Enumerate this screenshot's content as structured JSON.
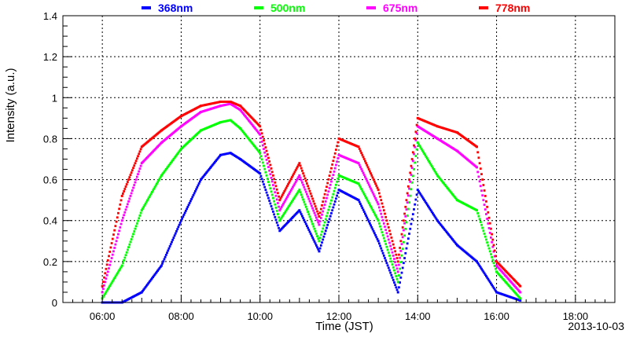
{
  "chart_data": {
    "type": "scatter",
    "xlabel": "Time (JST)",
    "ylabel": "Intensity (a.u.)",
    "date": "2013-10-03",
    "xlim": [
      5.0,
      19.0
    ],
    "ylim": [
      0,
      1.4
    ],
    "grid": true,
    "legend_position": "top",
    "x_tick_labels": [
      "06:00",
      "08:00",
      "10:00",
      "12:00",
      "14:00",
      "16:00",
      "18:00"
    ],
    "x_tick_values": [
      6,
      8,
      10,
      12,
      14,
      16,
      18
    ],
    "y_tick_labels": [
      "0",
      "0.2",
      "0.4",
      "0.6",
      "0.8",
      "1",
      "1.2",
      "1.4"
    ],
    "y_tick_values": [
      0,
      0.2,
      0.4,
      0.6,
      0.8,
      1.0,
      1.2,
      1.4
    ],
    "series": [
      {
        "name": "368nm",
        "color": "#0000ff",
        "x": [
          6.0,
          6.5,
          7.0,
          7.5,
          8.0,
          8.5,
          9.0,
          9.25,
          9.5,
          10.0,
          10.5,
          11.0,
          11.5,
          12.0,
          12.5,
          13.0,
          13.5,
          14.0,
          14.5,
          15.0,
          15.5,
          16.0,
          16.6
        ],
        "y": [
          0.0,
          0.0,
          0.05,
          0.18,
          0.4,
          0.6,
          0.72,
          0.73,
          0.7,
          0.63,
          0.35,
          0.45,
          0.25,
          0.55,
          0.5,
          0.3,
          0.05,
          0.55,
          0.4,
          0.28,
          0.2,
          0.05,
          0.01
        ]
      },
      {
        "name": "500nm",
        "color": "#00ff00",
        "x": [
          6.0,
          6.5,
          7.0,
          7.5,
          8.0,
          8.5,
          9.0,
          9.25,
          9.5,
          10.0,
          10.5,
          11.0,
          11.5,
          12.0,
          12.5,
          13.0,
          13.5,
          14.0,
          14.5,
          15.0,
          15.5,
          16.0,
          16.6
        ],
        "y": [
          0.02,
          0.18,
          0.45,
          0.62,
          0.75,
          0.84,
          0.88,
          0.89,
          0.85,
          0.73,
          0.4,
          0.55,
          0.3,
          0.62,
          0.58,
          0.4,
          0.1,
          0.78,
          0.62,
          0.5,
          0.45,
          0.15,
          0.02
        ]
      },
      {
        "name": "675nm",
        "color": "#ff00ff",
        "x": [
          6.0,
          6.5,
          7.0,
          7.5,
          8.0,
          8.5,
          9.0,
          9.25,
          9.5,
          10.0,
          10.5,
          11.0,
          11.5,
          12.0,
          12.5,
          13.0,
          13.5,
          14.0,
          14.5,
          15.0,
          15.5,
          16.0,
          16.6
        ],
        "y": [
          0.05,
          0.4,
          0.68,
          0.78,
          0.86,
          0.93,
          0.96,
          0.97,
          0.94,
          0.82,
          0.45,
          0.62,
          0.38,
          0.72,
          0.68,
          0.48,
          0.15,
          0.86,
          0.8,
          0.74,
          0.66,
          0.18,
          0.05
        ]
      },
      {
        "name": "778nm",
        "color": "#ff0000",
        "x": [
          6.0,
          6.5,
          7.0,
          7.5,
          8.0,
          8.5,
          9.0,
          9.25,
          9.5,
          10.0,
          10.5,
          11.0,
          11.5,
          12.0,
          12.5,
          13.0,
          13.5,
          14.0,
          14.5,
          15.0,
          15.5,
          16.0,
          16.6
        ],
        "y": [
          0.08,
          0.52,
          0.76,
          0.84,
          0.91,
          0.96,
          0.98,
          0.98,
          0.96,
          0.86,
          0.5,
          0.68,
          0.42,
          0.8,
          0.76,
          0.55,
          0.2,
          0.9,
          0.86,
          0.83,
          0.76,
          0.2,
          0.08
        ]
      }
    ]
  }
}
